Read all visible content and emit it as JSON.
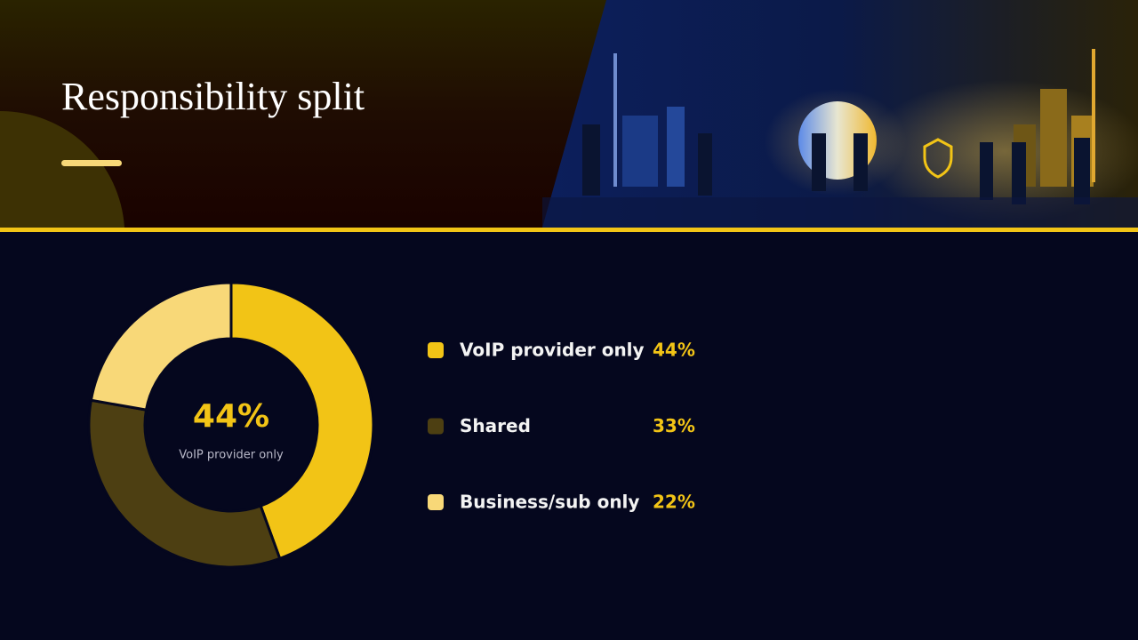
{
  "chart_data": {
    "type": "pie",
    "title": "Responsibility split",
    "categories": [
      "VoIP provider only",
      "Shared",
      "Business/sub only"
    ],
    "values": [
      44,
      33,
      22
    ],
    "value_labels": [
      "44%",
      "33%",
      "22%"
    ],
    "colors": [
      "#f2c416",
      "#4d3f12",
      "#f8d878"
    ],
    "donut": true
  }
}
